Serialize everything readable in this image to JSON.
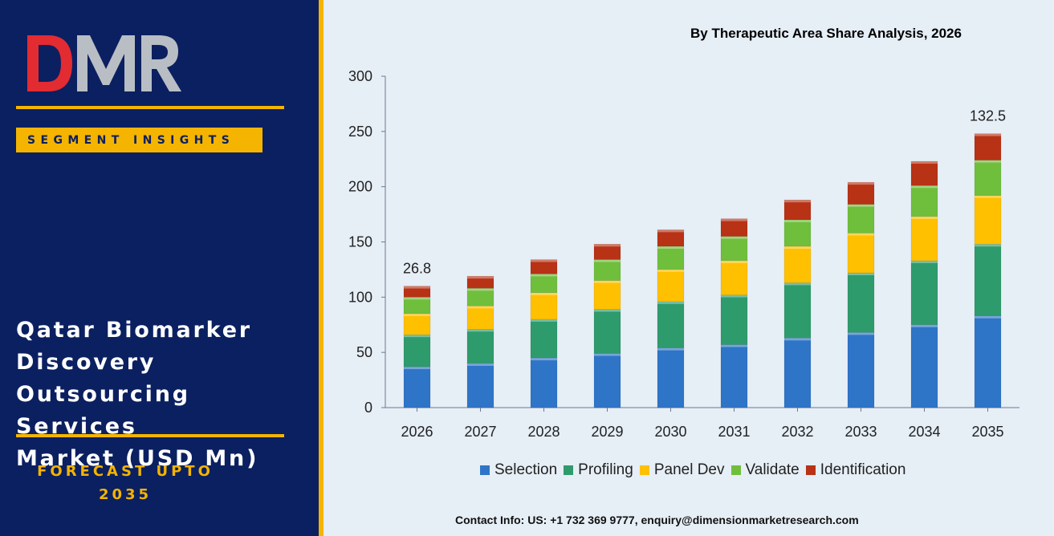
{
  "brand": {
    "logo_text": "DMR",
    "colors": {
      "navy": "#0b2060",
      "gold": "#f4b400",
      "logo_red": "#e32b32",
      "logo_gray": "#b9bec4"
    }
  },
  "sidebar": {
    "segment_label": "SEGMENT INSIGHTS",
    "market_title_lines": [
      "Qatar Biomarker",
      "Discovery",
      "Outsourcing Services",
      "Market (USD Mn)"
    ],
    "forecast_lines": [
      "FORECAST UPTO",
      "2035"
    ]
  },
  "chart_heading": "By Therapeutic Area Share Analysis, 2026",
  "contact": "Contact Info: US: +1 732 369 9777, enquiry@dimensionmarketresearch.com",
  "chart_data": {
    "type": "bar",
    "stacked": true,
    "categories": [
      "2026",
      "2027",
      "2028",
      "2029",
      "2030",
      "2031",
      "2032",
      "2033",
      "2034",
      "2035"
    ],
    "ylim": [
      0,
      300
    ],
    "yticks": [
      0,
      50,
      100,
      150,
      200,
      250,
      300
    ],
    "series": [
      {
        "name": "Selection",
        "color": "#2e75c7",
        "values": [
          37,
          40,
          45,
          49,
          54,
          57,
          63,
          68,
          75,
          83
        ]
      },
      {
        "name": "Profiling",
        "color": "#2e9b6c",
        "values": [
          29,
          31,
          35,
          40,
          42,
          45,
          50,
          54,
          58,
          65
        ]
      },
      {
        "name": "Panel Dev",
        "color": "#ffc000",
        "values": [
          19,
          21,
          24,
          26,
          29,
          31,
          33,
          36,
          40,
          44
        ]
      },
      {
        "name": "Validate",
        "color": "#6fbf3c",
        "values": [
          15,
          16,
          17,
          19,
          21,
          22,
          24,
          26,
          28,
          32
        ]
      },
      {
        "name": "Identification",
        "color": "#b83216",
        "values": [
          10,
          11,
          13,
          14,
          15,
          16,
          18,
          20,
          22,
          24
        ]
      }
    ],
    "annotations": [
      {
        "category": "2026",
        "text": "26.8"
      },
      {
        "category": "2035",
        "text": "132.5"
      }
    ],
    "grid": false,
    "legend_position": "bottom"
  }
}
